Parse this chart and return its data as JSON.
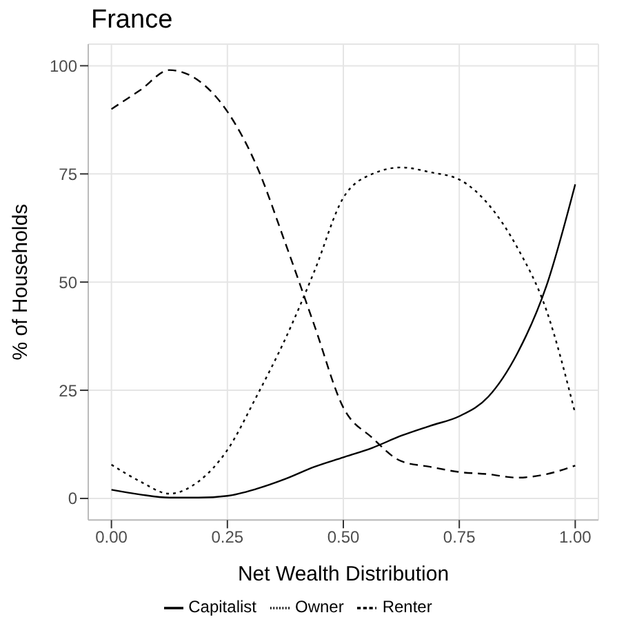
{
  "chart_data": {
    "type": "line",
    "title": "France",
    "xlabel": "Net Wealth Distribution",
    "ylabel": "% of Households",
    "x": [
      0,
      0.0625,
      0.125,
      0.1875,
      0.25,
      0.3125,
      0.375,
      0.4375,
      0.5,
      0.5625,
      0.625,
      0.6875,
      0.75,
      0.8125,
      0.875,
      0.9375,
      1
    ],
    "series": [
      {
        "name": "Capitalist",
        "color": "#000000",
        "line_style": "solid",
        "values": [
          2,
          0.9,
          0.2,
          0.2,
          0.6,
          2.2,
          4.5,
          7.3,
          9.5,
          11.7,
          14.5,
          16.8,
          19,
          23.5,
          33.5,
          49,
          72.6
        ]
      },
      {
        "name": "Owner",
        "color": "#000000",
        "line_style": "dotted",
        "values": [
          7.8,
          3.9,
          1.1,
          3.9,
          11.2,
          23.5,
          36.9,
          52.5,
          69.5,
          75,
          76.5,
          75.4,
          73.7,
          68,
          58,
          43.6,
          19.6
        ]
      },
      {
        "name": "Renter",
        "color": "#000000",
        "line_style": "dashed",
        "values": [
          90,
          94.4,
          99,
          96.6,
          89.4,
          77,
          59,
          40,
          21,
          14,
          8.6,
          7.3,
          6.1,
          5.6,
          4.8,
          5.6,
          7.6
        ]
      }
    ],
    "xlim": [
      -0.05,
      1.05
    ],
    "xticks": [
      {
        "value": 0,
        "label": "0.00"
      },
      {
        "value": 0.25,
        "label": "0.25"
      },
      {
        "value": 0.5,
        "label": "0.50"
      },
      {
        "value": 0.75,
        "label": "0.75"
      },
      {
        "value": 1,
        "label": "1.00"
      }
    ],
    "ylim": [
      -5,
      105
    ],
    "yticks": [
      0,
      25,
      50,
      75,
      100
    ],
    "grid": true,
    "legend": "bottom",
    "marker": "none"
  }
}
